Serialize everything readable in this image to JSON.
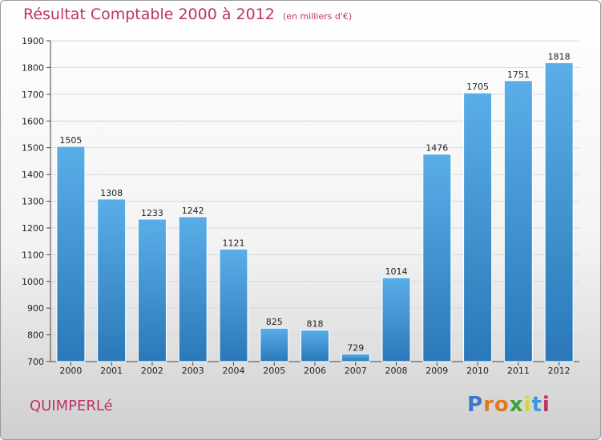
{
  "header": {
    "title": "Résultat Comptable 2000 à 2012",
    "subtitle": "(en milliers d'€)"
  },
  "footer": {
    "city": "QUIMPERLé",
    "logo_letters": [
      "P",
      "r",
      "o",
      "x",
      "i",
      "t",
      "i"
    ],
    "logo_colors": [
      "#3a78c8",
      "#e07a1f",
      "#e07a1f",
      "#3aa335",
      "#d9d13a",
      "#3a9ad9",
      "#c0306a"
    ]
  },
  "colors": {
    "bar_top": "#5aaee8",
    "bar_bottom": "#2a78b8",
    "title": "#c0306a"
  },
  "chart_data": {
    "type": "bar",
    "title": "Résultat Comptable 2000 à 2012",
    "xlabel": "",
    "ylabel": "",
    "categories": [
      "2000",
      "2001",
      "2002",
      "2003",
      "2004",
      "2005",
      "2006",
      "2007",
      "2008",
      "2009",
      "2010",
      "2011",
      "2012"
    ],
    "values": [
      1505,
      1308,
      1233,
      1242,
      1121,
      825,
      818,
      729,
      1014,
      1476,
      1705,
      1751,
      1818
    ],
    "ylim": [
      700,
      1900
    ],
    "yticks": [
      700,
      800,
      900,
      1000,
      1100,
      1200,
      1300,
      1400,
      1500,
      1600,
      1700,
      1800,
      1900
    ],
    "grid": true,
    "legend": "none"
  }
}
